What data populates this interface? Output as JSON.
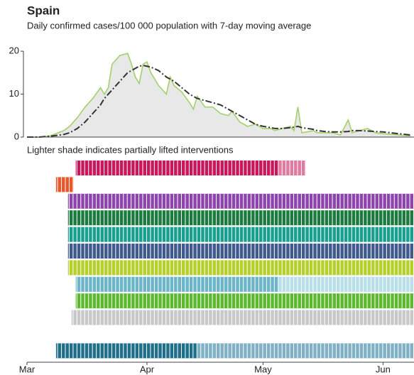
{
  "chart_data": {
    "type": "line",
    "title": "Spain",
    "subtitle": "Daily confirmed cases/100 000 population with 7-day moving average",
    "note": "Lighter shade indicates partially lifted interventions",
    "x": [
      0,
      3,
      6,
      9.5,
      11,
      13,
      15,
      17,
      19,
      20,
      21,
      22,
      24,
      26,
      27,
      28,
      29,
      30,
      31,
      32,
      34,
      36,
      37,
      38,
      40,
      42,
      43,
      44,
      46,
      48,
      50,
      52,
      53,
      55,
      57,
      59,
      61,
      63,
      64,
      66,
      68,
      69,
      70,
      71,
      74,
      75,
      77,
      79,
      81,
      83,
      84,
      86,
      88,
      90,
      92,
      96,
      99
    ],
    "series": [
      {
        "color": "#a5cf6a",
        "fill": "#e8e8e8",
        "values": [
          0,
          0,
          0.3,
          1.5,
          2.5,
          4.5,
          7,
          9,
          11.5,
          10,
          11.5,
          17,
          19,
          19.5,
          17,
          14,
          12.5,
          17,
          17.5,
          15,
          12,
          10,
          14,
          12,
          10.5,
          8,
          6.5,
          9.5,
          7,
          7,
          5.5,
          5,
          6,
          3.5,
          2.5,
          3,
          2,
          2,
          1.5,
          2,
          2.5,
          1.5,
          7,
          1,
          1.5,
          1,
          1,
          1,
          0.5,
          4,
          1,
          1.5,
          2,
          1,
          0.8,
          0.5,
          0.3
        ]
      },
      {
        "color": "#333333",
        "dash": "9 3 2 3",
        "values": [
          0,
          0,
          0.2,
          0.6,
          1,
          2,
          3.5,
          5.5,
          7.5,
          9,
          10,
          11,
          13,
          15,
          15.5,
          16,
          16.5,
          16.7,
          16.5,
          16.3,
          15.5,
          14,
          13.5,
          13,
          11.5,
          10,
          9.5,
          9,
          8.5,
          8,
          7.5,
          6.5,
          6,
          5,
          4,
          3,
          2.5,
          2.2,
          2,
          2,
          2.2,
          2.3,
          2.5,
          2.2,
          1.8,
          1.5,
          1.3,
          1.2,
          1.2,
          1.3,
          1.5,
          1.5,
          1.4,
          1.3,
          1.2,
          0.8,
          0.5
        ]
      }
    ],
    "xlim": [
      0,
      100
    ],
    "xticks": [
      {
        "value": 0,
        "label": "Mar"
      },
      {
        "value": 31,
        "label": "Apr"
      },
      {
        "value": 61,
        "label": "May"
      },
      {
        "value": 92,
        "label": "Jun"
      }
    ],
    "ylim": [
      0,
      22
    ],
    "yticks": [
      0,
      10,
      20
    ],
    "interventions": [
      {
        "start": 12.6,
        "lifted_from": 65,
        "end": 72,
        "color": "#c8175d",
        "lifted_color": "#e07ba0"
      },
      {
        "start": 7.5,
        "end": 12,
        "color": "#e8572a"
      },
      {
        "start": 10.6,
        "end": 100,
        "color": "#8e44ad"
      },
      {
        "start": 10.6,
        "end": 100,
        "color": "#1b7a3e"
      },
      {
        "start": 10.6,
        "end": 100,
        "color": "#17a08f"
      },
      {
        "start": 10.6,
        "end": 100,
        "color": "#3f5a8e"
      },
      {
        "start": 10.6,
        "end": 100,
        "color": "#b5cf2b"
      },
      {
        "start": 12.6,
        "lifted_from": 65,
        "end": 100,
        "color": "#6bb5c8",
        "lifted_color": "#b8dfe8"
      },
      {
        "start": 12.6,
        "end": 100,
        "color": "#5cb82e"
      },
      {
        "start": 11.5,
        "end": 100,
        "color": "#c8c8c8"
      },
      null,
      {
        "start": 7.5,
        "lifted_from": 44,
        "end": 100,
        "color": "#1e6f8a",
        "lifted_color": "#7fb0c4"
      }
    ]
  }
}
